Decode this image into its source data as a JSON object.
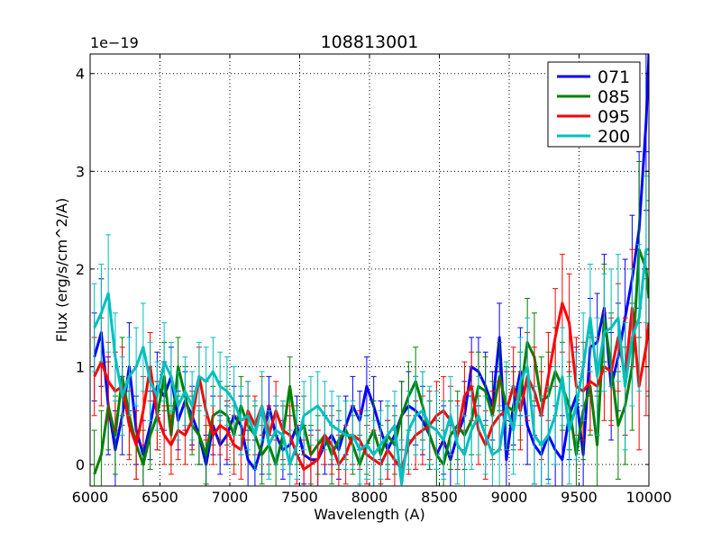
{
  "chart_data": {
    "type": "line",
    "title": "108813001",
    "xlabel": "Wavelength (A)",
    "ylabel": "Flux (erg/s/cm^2/A)",
    "offset_text": "1e−19",
    "xlim": [
      6000,
      10000
    ],
    "ylim": [
      -0.22,
      4.2
    ],
    "xticks": [
      6000,
      6500,
      7000,
      7500,
      8000,
      8500,
      9000,
      9500,
      10000
    ],
    "yticks": [
      0,
      1,
      2,
      3,
      4
    ],
    "grid": true,
    "legend_position": "top-right",
    "series": [
      {
        "name": "071",
        "color": "#0000ff",
        "x": [
          6030,
          6080,
          6130,
          6180,
          6230,
          6280,
          6330,
          6380,
          6430,
          6480,
          6530,
          6580,
          6630,
          6680,
          6730,
          6780,
          6830,
          6880,
          6930,
          6980,
          7030,
          7080,
          7130,
          7180,
          7230,
          7280,
          7330,
          7380,
          7430,
          7480,
          7530,
          7580,
          7630,
          7680,
          7730,
          7780,
          7830,
          7880,
          7930,
          7980,
          8030,
          8080,
          8130,
          8180,
          8230,
          8280,
          8330,
          8380,
          8430,
          8480,
          8530,
          8580,
          8630,
          8680,
          8730,
          8780,
          8830,
          8880,
          8930,
          8980,
          9030,
          9080,
          9130,
          9180,
          9230,
          9280,
          9330,
          9380,
          9430,
          9480,
          9530,
          9580,
          9630,
          9680,
          9730,
          9780,
          9830,
          9880,
          9930,
          9980,
          10000
        ],
        "y": [
          1.1,
          1.35,
          0.6,
          0.15,
          0.5,
          1.0,
          0.35,
          0.1,
          0.4,
          0.8,
          0.7,
          0.9,
          0.45,
          0.65,
          0.5,
          0.3,
          0.0,
          0.4,
          0.2,
          0.3,
          0.5,
          0.4,
          0.05,
          -0.05,
          0.2,
          0.6,
          0.3,
          0.15,
          0.2,
          0.4,
          0.1,
          0.05,
          0.05,
          0.2,
          0.3,
          0.15,
          0.4,
          0.6,
          0.45,
          0.8,
          0.6,
          0.35,
          0.15,
          0.3,
          0.5,
          0.6,
          0.55,
          0.45,
          0.3,
          0.1,
          0.25,
          0.05,
          0.3,
          0.5,
          1.0,
          0.95,
          0.8,
          0.6,
          1.3,
          0.05,
          0.6,
          0.95,
          0.4,
          0.2,
          0.1,
          0.3,
          0.15,
          0.05,
          0.5,
          0.7,
          0.1,
          1.2,
          1.25,
          1.6,
          0.8,
          1.1,
          1.5,
          1.9,
          2.4,
          3.5,
          4.2
        ],
        "errors": [
          0.45,
          0.55,
          0.5,
          0.4,
          0.4,
          0.45,
          0.35,
          0.35,
          0.35,
          0.35,
          0.35,
          0.3,
          0.3,
          0.3,
          0.3,
          0.3,
          0.3,
          0.3,
          0.3,
          0.3,
          0.3,
          0.3,
          0.3,
          0.3,
          0.3,
          0.3,
          0.3,
          0.3,
          0.3,
          0.3,
          0.3,
          0.3,
          0.3,
          0.3,
          0.3,
          0.3,
          0.3,
          0.3,
          0.3,
          0.3,
          0.3,
          0.3,
          0.3,
          0.3,
          0.35,
          0.35,
          0.35,
          0.35,
          0.35,
          0.35,
          0.35,
          0.35,
          0.35,
          0.35,
          0.3,
          0.35,
          0.35,
          0.35,
          0.35,
          0.4,
          0.4,
          0.45,
          0.4,
          0.4,
          0.4,
          0.45,
          0.45,
          0.45,
          0.45,
          0.5,
          0.5,
          0.5,
          0.5,
          0.55,
          0.55,
          0.55,
          0.6,
          0.65,
          0.8,
          0.9,
          1.0
        ]
      },
      {
        "name": "085",
        "color": "#008000",
        "x": [
          6030,
          6080,
          6130,
          6180,
          6230,
          6280,
          6330,
          6380,
          6430,
          6480,
          6530,
          6580,
          6630,
          6680,
          6730,
          6780,
          6830,
          6880,
          6930,
          6980,
          7030,
          7080,
          7130,
          7180,
          7230,
          7280,
          7330,
          7380,
          7430,
          7480,
          7530,
          7580,
          7630,
          7680,
          7730,
          7780,
          7830,
          7880,
          7930,
          7980,
          8030,
          8080,
          8130,
          8180,
          8230,
          8280,
          8330,
          8380,
          8430,
          8480,
          8530,
          8580,
          8630,
          8680,
          8730,
          8780,
          8830,
          8880,
          8930,
          8980,
          9030,
          9080,
          9130,
          9180,
          9230,
          9280,
          9330,
          9380,
          9430,
          9480,
          9530,
          9580,
          9630,
          9680,
          9730,
          9780,
          9830,
          9880,
          9930,
          9980,
          10000
        ],
        "y": [
          -0.1,
          0.1,
          0.6,
          0.3,
          0.9,
          0.5,
          0.2,
          0.0,
          0.3,
          0.5,
          0.9,
          0.3,
          1.0,
          0.7,
          0.4,
          0.3,
          0.1,
          0.5,
          0.55,
          0.5,
          0.3,
          0.6,
          0.4,
          0.3,
          0.1,
          0.2,
          0.0,
          0.3,
          0.8,
          0.3,
          0.4,
          0.1,
          0.2,
          0.3,
          0.1,
          0.25,
          0.35,
          0.2,
          0.0,
          0.2,
          0.35,
          0.1,
          0.3,
          0.2,
          0.5,
          0.7,
          0.85,
          0.6,
          0.3,
          0.1,
          0.0,
          0.3,
          0.4,
          0.3,
          0.45,
          0.8,
          0.75,
          0.5,
          0.9,
          0.6,
          0.55,
          0.7,
          1.25,
          1.1,
          0.65,
          0.7,
          0.95,
          0.8,
          0.6,
          0.1,
          0.55,
          0.8,
          0.2,
          1.5,
          1.0,
          0.4,
          0.6,
          1.0,
          2.2,
          2.0,
          1.7
        ],
        "errors": [
          0.45,
          0.45,
          0.45,
          0.4,
          0.4,
          0.4,
          0.35,
          0.35,
          0.35,
          0.35,
          0.35,
          0.3,
          0.3,
          0.3,
          0.3,
          0.3,
          0.3,
          0.3,
          0.3,
          0.3,
          0.3,
          0.3,
          0.3,
          0.3,
          0.3,
          0.3,
          0.3,
          0.3,
          0.3,
          0.3,
          0.3,
          0.3,
          0.3,
          0.3,
          0.3,
          0.3,
          0.3,
          0.3,
          0.3,
          0.3,
          0.3,
          0.3,
          0.3,
          0.3,
          0.35,
          0.35,
          0.35,
          0.35,
          0.35,
          0.35,
          0.35,
          0.35,
          0.35,
          0.35,
          0.35,
          0.35,
          0.35,
          0.35,
          0.35,
          0.4,
          0.4,
          0.45,
          0.45,
          0.45,
          0.45,
          0.45,
          0.45,
          0.45,
          0.45,
          0.5,
          0.5,
          0.5,
          0.5,
          0.55,
          0.55,
          0.55,
          0.6,
          0.65,
          0.9,
          1.0,
          1.0
        ]
      },
      {
        "name": "095",
        "color": "#ff0000",
        "x": [
          6030,
          6080,
          6130,
          6180,
          6230,
          6280,
          6330,
          6380,
          6430,
          6480,
          6530,
          6580,
          6630,
          6680,
          6730,
          6780,
          6830,
          6880,
          6930,
          6980,
          7030,
          7080,
          7130,
          7180,
          7230,
          7280,
          7330,
          7380,
          7430,
          7480,
          7530,
          7580,
          7630,
          7680,
          7730,
          7780,
          7830,
          7880,
          7930,
          7980,
          8030,
          8080,
          8130,
          8180,
          8230,
          8280,
          8330,
          8380,
          8430,
          8480,
          8530,
          8580,
          8630,
          8680,
          8730,
          8780,
          8830,
          8880,
          8930,
          8980,
          9030,
          9080,
          9130,
          9180,
          9230,
          9280,
          9330,
          9380,
          9430,
          9480,
          9530,
          9580,
          9630,
          9680,
          9730,
          9780,
          9830,
          9880,
          9930,
          9980,
          10000
        ],
        "y": [
          0.9,
          1.05,
          0.85,
          0.75,
          0.8,
          0.4,
          0.2,
          0.55,
          1.0,
          0.5,
          0.3,
          0.2,
          0.35,
          0.3,
          0.45,
          0.9,
          0.55,
          0.3,
          0.4,
          0.35,
          0.2,
          0.15,
          0.55,
          0.4,
          0.6,
          0.3,
          0.55,
          0.35,
          0.3,
          0.1,
          -0.05,
          0.0,
          0.05,
          0.3,
          0.2,
          0.0,
          0.1,
          0.3,
          0.25,
          0.1,
          0.05,
          0.0,
          0.15,
          0.05,
          -0.05,
          0.2,
          0.3,
          0.35,
          0.4,
          0.5,
          0.55,
          0.45,
          0.3,
          0.7,
          0.8,
          0.35,
          0.2,
          0.4,
          0.5,
          0.55,
          0.8,
          0.55,
          0.9,
          0.75,
          0.5,
          0.9,
          1.3,
          1.65,
          1.45,
          0.8,
          0.75,
          0.85,
          0.8,
          1.0,
          0.95,
          1.3,
          0.9,
          1.6,
          0.8,
          1.2,
          1.45
        ],
        "errors": [
          0.4,
          0.45,
          0.4,
          0.4,
          0.4,
          0.35,
          0.35,
          0.35,
          0.35,
          0.35,
          0.3,
          0.3,
          0.3,
          0.3,
          0.3,
          0.3,
          0.3,
          0.3,
          0.3,
          0.3,
          0.3,
          0.3,
          0.3,
          0.3,
          0.3,
          0.3,
          0.3,
          0.3,
          0.3,
          0.3,
          0.3,
          0.3,
          0.3,
          0.3,
          0.3,
          0.3,
          0.3,
          0.3,
          0.3,
          0.3,
          0.3,
          0.3,
          0.3,
          0.3,
          0.3,
          0.3,
          0.35,
          0.35,
          0.35,
          0.35,
          0.35,
          0.35,
          0.35,
          0.35,
          0.35,
          0.35,
          0.35,
          0.35,
          0.35,
          0.4,
          0.4,
          0.4,
          0.45,
          0.45,
          0.45,
          0.45,
          0.5,
          0.5,
          0.5,
          0.5,
          0.5,
          0.5,
          0.5,
          0.55,
          0.55,
          0.55,
          0.6,
          0.6,
          0.65,
          0.7,
          0.7
        ]
      },
      {
        "name": "200",
        "color": "#00bfbf",
        "x": [
          6030,
          6080,
          6130,
          6180,
          6230,
          6280,
          6330,
          6380,
          6430,
          6480,
          6530,
          6580,
          6630,
          6680,
          6730,
          6780,
          6830,
          6880,
          6930,
          6980,
          7030,
          7080,
          7130,
          7180,
          7230,
          7280,
          7330,
          7380,
          7430,
          7480,
          7530,
          7580,
          7630,
          7680,
          7730,
          7780,
          7830,
          7880,
          7930,
          7980,
          8030,
          8080,
          8130,
          8180,
          8230,
          8280,
          8330,
          8380,
          8430,
          8480,
          8530,
          8580,
          8630,
          8680,
          8730,
          8780,
          8830,
          8880,
          8930,
          8980,
          9030,
          9080,
          9130,
          9180,
          9230,
          9280,
          9330,
          9380,
          9430,
          9480,
          9530,
          9580,
          9630,
          9680,
          9730,
          9780,
          9830,
          9880,
          9930,
          9980,
          10000
        ],
        "y": [
          1.4,
          1.55,
          1.75,
          1.1,
          0.7,
          0.9,
          1.0,
          1.2,
          0.85,
          0.7,
          1.05,
          0.9,
          0.6,
          0.75,
          0.6,
          0.9,
          0.85,
          0.95,
          0.8,
          0.75,
          0.65,
          0.45,
          0.5,
          0.3,
          0.6,
          0.2,
          0.35,
          0.3,
          0.0,
          0.2,
          0.5,
          0.55,
          0.6,
          0.5,
          0.4,
          0.35,
          0.3,
          0.3,
          0.15,
          0.2,
          0.1,
          0.2,
          0.3,
          0.4,
          -0.2,
          0.35,
          0.5,
          0.55,
          0.4,
          0.35,
          0.25,
          0.5,
          0.2,
          0.1,
          0.35,
          0.5,
          0.3,
          0.1,
          0.15,
          0.6,
          0.35,
          0.85,
          1.0,
          0.3,
          0.2,
          0.3,
          0.5,
          0.9,
          0.35,
          0.6,
          1.0,
          1.5,
          0.9,
          1.35,
          1.4,
          1.5,
          0.8,
          1.3,
          1.5,
          2.2,
          2.2
        ],
        "errors": [
          0.45,
          0.5,
          0.6,
          0.45,
          0.4,
          0.4,
          0.4,
          0.45,
          0.4,
          0.35,
          0.4,
          0.35,
          0.35,
          0.35,
          0.35,
          0.35,
          0.35,
          0.35,
          0.35,
          0.35,
          0.35,
          0.35,
          0.35,
          0.35,
          0.35,
          0.35,
          0.35,
          0.35,
          0.35,
          0.35,
          0.35,
          0.35,
          0.35,
          0.35,
          0.35,
          0.35,
          0.35,
          0.35,
          0.35,
          0.35,
          0.35,
          0.35,
          0.35,
          0.35,
          0.45,
          0.4,
          0.4,
          0.4,
          0.4,
          0.4,
          0.4,
          0.4,
          0.4,
          0.4,
          0.4,
          0.4,
          0.4,
          0.4,
          0.45,
          0.45,
          0.45,
          0.45,
          0.5,
          0.5,
          0.5,
          0.5,
          0.5,
          0.5,
          0.55,
          0.55,
          0.55,
          0.55,
          0.6,
          0.6,
          0.6,
          0.65,
          0.65,
          0.7,
          0.75,
          0.75,
          0.8
        ]
      }
    ]
  }
}
